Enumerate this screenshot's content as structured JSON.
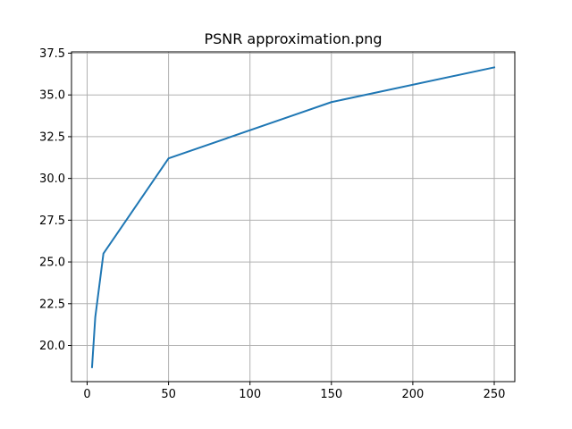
{
  "chart_data": {
    "type": "line",
    "title": "PSNR approximation.png",
    "xlabel": "",
    "ylabel": "",
    "xlim": [
      -10,
      263
    ],
    "ylim": [
      18.25,
      37.5
    ],
    "xticks": [
      0,
      50,
      100,
      150,
      200,
      250
    ],
    "yticks": [
      20.0,
      22.5,
      25.0,
      27.5,
      30.0,
      32.5,
      35.0,
      37.5
    ],
    "xtick_labels": [
      "0",
      "50",
      "100",
      "150",
      "200",
      "250"
    ],
    "ytick_labels": [
      "20.0",
      "22.5",
      "25.0",
      "27.5",
      "30.0",
      "32.5",
      "35.0",
      "37.5"
    ],
    "grid": true,
    "series": [
      {
        "color": "#1f77b4",
        "x": [
          3,
          5,
          10,
          50,
          150,
          250
        ],
        "y": [
          18.7,
          21.7,
          25.5,
          31.2,
          34.57,
          36.65
        ]
      }
    ]
  }
}
